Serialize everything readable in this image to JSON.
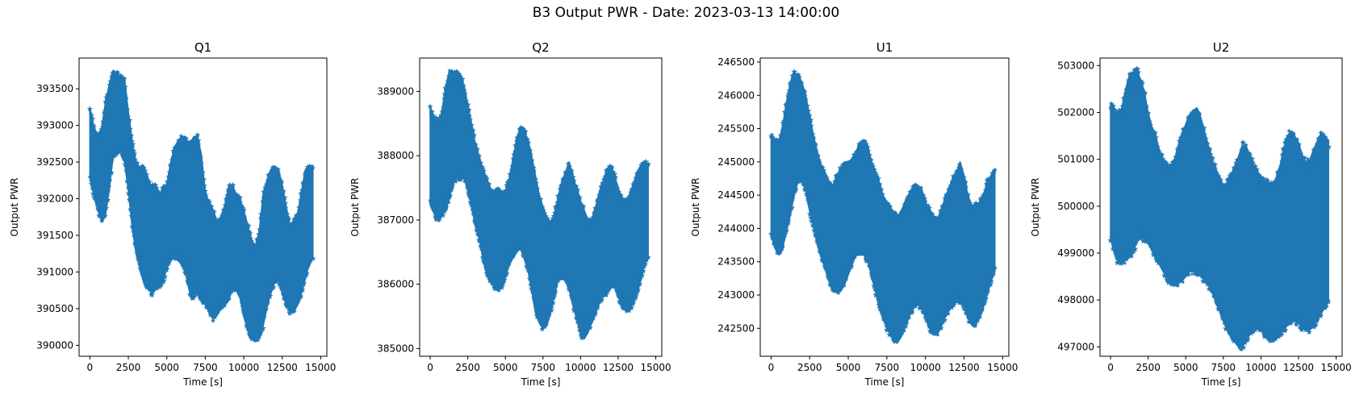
{
  "figure": {
    "title": "B3 Output PWR - Date: 2023-03-13 14:00:00",
    "accent_color": "#1f77b4"
  },
  "chart_data": [
    {
      "type": "scatter",
      "marker": "star",
      "title": "Q1",
      "xlabel": "Time [s]",
      "ylabel": "Output PWR",
      "xlim": [
        -700,
        15400
      ],
      "ylim": [
        389850,
        393920
      ],
      "xticks": [
        0,
        2500,
        5000,
        7500,
        10000,
        12500,
        15000
      ],
      "yticks": [
        390000,
        390500,
        391000,
        391500,
        392000,
        392500,
        393000,
        393500
      ],
      "grid": false,
      "color": "#1f77b4",
      "series": [
        {
          "x": [
            0,
            250,
            500,
            750,
            1000,
            1250,
            1500,
            1750,
            2000,
            2250,
            2500,
            2750,
            3000,
            3250,
            3500,
            3750,
            4000,
            4250,
            4500,
            4750,
            5000,
            5250,
            5500,
            5750,
            6000,
            6250,
            6500,
            6750,
            7000,
            7250,
            7500,
            7750,
            8000,
            8250,
            8500,
            8750,
            9000,
            9250,
            9500,
            9750,
            10000,
            10250,
            10500,
            10750,
            11000,
            11250,
            11500,
            11750,
            12000,
            12250,
            12500,
            12750,
            13000,
            13250,
            13500,
            13750,
            14000,
            14250,
            14500
          ],
          "upper": [
            393250,
            393000,
            392850,
            392950,
            393300,
            393550,
            393750,
            393720,
            393680,
            393650,
            393200,
            392800,
            392500,
            392400,
            392450,
            392300,
            392150,
            392200,
            392050,
            392150,
            392200,
            392500,
            392700,
            392800,
            392850,
            392800,
            392750,
            392850,
            392850,
            392600,
            392100,
            391950,
            391850,
            391700,
            391750,
            391900,
            392150,
            392200,
            392050,
            392000,
            391850,
            391650,
            391450,
            391350,
            391550,
            392050,
            392250,
            392400,
            392450,
            392400,
            392200,
            391900,
            391650,
            391700,
            391800,
            392100,
            392400,
            392450,
            392450
          ],
          "lower": [
            392300,
            392050,
            391850,
            391700,
            391750,
            392100,
            392550,
            392600,
            392650,
            392500,
            392100,
            391600,
            391250,
            391050,
            390850,
            390800,
            390700,
            390750,
            390800,
            390850,
            391050,
            391150,
            391200,
            391150,
            391100,
            390950,
            390700,
            390650,
            390700,
            390600,
            390550,
            390450,
            390350,
            390400,
            390500,
            390550,
            390600,
            390750,
            390750,
            390650,
            390400,
            390200,
            390100,
            390050,
            390100,
            390250,
            390500,
            390700,
            390850,
            390900,
            390700,
            390550,
            390450,
            390450,
            390550,
            390700,
            390900,
            391100,
            391200
          ]
        }
      ]
    },
    {
      "type": "scatter",
      "marker": "star",
      "title": "Q2",
      "xlabel": "Time [s]",
      "ylabel": "Output PWR",
      "xlim": [
        -700,
        15400
      ],
      "ylim": [
        384880,
        389520
      ],
      "xticks": [
        0,
        2500,
        5000,
        7500,
        10000,
        12500,
        15000
      ],
      "yticks": [
        385000,
        386000,
        387000,
        388000,
        389000
      ],
      "grid": false,
      "color": "#1f77b4",
      "series": [
        {
          "x": [
            0,
            250,
            500,
            750,
            1000,
            1250,
            1500,
            1750,
            2000,
            2250,
            2500,
            2750,
            3000,
            3250,
            3500,
            3750,
            4000,
            4250,
            4500,
            4750,
            5000,
            5250,
            5500,
            5750,
            6000,
            6250,
            6500,
            6750,
            7000,
            7250,
            7500,
            7750,
            8000,
            8250,
            8500,
            8750,
            9000,
            9250,
            9500,
            9750,
            10000,
            10250,
            10500,
            10750,
            11000,
            11250,
            11500,
            11750,
            12000,
            12250,
            12500,
            12750,
            13000,
            13250,
            13500,
            13750,
            14000,
            14250,
            14500
          ],
          "upper": [
            388750,
            388600,
            388550,
            388650,
            389050,
            389300,
            389300,
            389300,
            389250,
            389100,
            388800,
            388500,
            388200,
            388000,
            387800,
            387650,
            387500,
            387450,
            387500,
            387450,
            387450,
            387650,
            387950,
            388250,
            388450,
            388400,
            388250,
            388000,
            387700,
            387400,
            387200,
            387050,
            386950,
            387100,
            387350,
            387600,
            387750,
            387900,
            387650,
            387500,
            387300,
            387150,
            387000,
            387000,
            387200,
            387450,
            387600,
            387800,
            387850,
            387700,
            387500,
            387350,
            387300,
            387400,
            387550,
            387750,
            387850,
            387900,
            387850
          ],
          "lower": [
            387250,
            387100,
            387000,
            387050,
            387150,
            387300,
            387550,
            387650,
            387650,
            387650,
            387450,
            387200,
            386900,
            386700,
            386400,
            386150,
            386050,
            385950,
            385900,
            385950,
            386100,
            386300,
            386400,
            386500,
            386550,
            386400,
            386200,
            385900,
            385550,
            385400,
            385300,
            385350,
            385550,
            385800,
            386050,
            386100,
            386050,
            385900,
            385650,
            385450,
            385200,
            385150,
            385250,
            385400,
            385550,
            385700,
            385800,
            385850,
            385950,
            385950,
            385800,
            385650,
            385600,
            385600,
            385700,
            385850,
            386050,
            386300,
            386400
          ]
        }
      ]
    },
    {
      "type": "scatter",
      "marker": "star",
      "title": "U1",
      "xlabel": "Time [s]",
      "ylabel": "Output PWR",
      "xlim": [
        -700,
        15400
      ],
      "ylim": [
        242080,
        246560
      ],
      "xticks": [
        0,
        2500,
        5000,
        7500,
        10000,
        12500,
        15000
      ],
      "yticks": [
        242500,
        243000,
        243500,
        244000,
        244500,
        245000,
        245500,
        246000,
        246500
      ],
      "grid": false,
      "color": "#1f77b4",
      "series": [
        {
          "x": [
            0,
            250,
            500,
            750,
            1000,
            1250,
            1500,
            1750,
            2000,
            2250,
            2500,
            2750,
            3000,
            3250,
            3500,
            3750,
            4000,
            4250,
            4500,
            4750,
            5000,
            5250,
            5500,
            5750,
            6000,
            6250,
            6500,
            6750,
            7000,
            7250,
            7500,
            7750,
            8000,
            8250,
            8500,
            8750,
            9000,
            9250,
            9500,
            9750,
            10000,
            10250,
            10500,
            10750,
            11000,
            11250,
            11500,
            11750,
            12000,
            12250,
            12500,
            12750,
            13000,
            13250,
            13500,
            13750,
            14000,
            14250,
            14500
          ],
          "upper": [
            245400,
            245350,
            245300,
            245550,
            245900,
            246200,
            246350,
            246300,
            246200,
            246000,
            245700,
            245400,
            245150,
            244950,
            244850,
            244700,
            244650,
            244800,
            244900,
            245000,
            245000,
            245050,
            245150,
            245300,
            245300,
            245250,
            245000,
            244850,
            244700,
            244500,
            244400,
            244300,
            244250,
            244200,
            244300,
            244450,
            244550,
            244650,
            244650,
            244600,
            244400,
            244300,
            244200,
            244150,
            244250,
            244450,
            244600,
            244750,
            244850,
            245000,
            244800,
            244500,
            244350,
            244350,
            244400,
            244500,
            244700,
            244800,
            244900
          ],
          "lower": [
            243900,
            243700,
            243600,
            243700,
            243950,
            244200,
            244500,
            244700,
            244700,
            244550,
            244250,
            244000,
            243750,
            243550,
            243400,
            243200,
            243050,
            243050,
            243050,
            243150,
            243300,
            243450,
            243600,
            243600,
            243600,
            243500,
            243300,
            243050,
            242800,
            242650,
            242500,
            242400,
            242300,
            242300,
            242400,
            242550,
            242700,
            242800,
            242850,
            242800,
            242650,
            242500,
            242400,
            242400,
            242500,
            242650,
            242750,
            242850,
            242900,
            242900,
            242800,
            242650,
            242550,
            242550,
            242650,
            242800,
            243000,
            243200,
            243350
          ]
        }
      ]
    },
    {
      "type": "scatter",
      "marker": "star",
      "title": "U2",
      "xlabel": "Time [s]",
      "ylabel": "Output PWR",
      "xlim": [
        -700,
        15400
      ],
      "ylim": [
        496800,
        503160
      ],
      "xticks": [
        0,
        2500,
        5000,
        7500,
        10000,
        12500,
        15000
      ],
      "yticks": [
        497000,
        498000,
        499000,
        500000,
        501000,
        502000,
        503000
      ],
      "grid": false,
      "color": "#1f77b4",
      "series": [
        {
          "x": [
            0,
            250,
            500,
            750,
            1000,
            1250,
            1500,
            1750,
            2000,
            2250,
            2500,
            2750,
            3000,
            3250,
            3500,
            3750,
            4000,
            4250,
            4500,
            4750,
            5000,
            5250,
            5500,
            5750,
            6000,
            6250,
            6500,
            6750,
            7000,
            7250,
            7500,
            7750,
            8000,
            8250,
            8500,
            8750,
            9000,
            9250,
            9500,
            9750,
            10000,
            10250,
            10500,
            10750,
            11000,
            11250,
            11500,
            11750,
            12000,
            12250,
            12500,
            12750,
            13000,
            13250,
            13500,
            13750,
            14000,
            14250,
            14500
          ],
          "upper": [
            502200,
            502100,
            502000,
            502100,
            502500,
            502800,
            502850,
            502900,
            502700,
            502450,
            502000,
            501700,
            501500,
            501200,
            501000,
            500900,
            500850,
            501000,
            501300,
            501550,
            501750,
            501950,
            502050,
            502100,
            501900,
            501600,
            501300,
            501000,
            500800,
            500600,
            500450,
            500500,
            500650,
            500850,
            501050,
            501300,
            501300,
            501100,
            500900,
            500750,
            500650,
            500550,
            500500,
            500450,
            500600,
            500850,
            501200,
            501500,
            501600,
            501500,
            501350,
            501100,
            500950,
            501000,
            501200,
            501400,
            501550,
            501500,
            501400
          ],
          "lower": [
            499300,
            499000,
            498800,
            498750,
            498850,
            498900,
            499000,
            499250,
            499300,
            499300,
            499200,
            499050,
            498900,
            498750,
            498600,
            498450,
            498350,
            498300,
            498350,
            498400,
            498500,
            498600,
            498600,
            498550,
            498500,
            498400,
            498300,
            498150,
            497950,
            497750,
            497550,
            497350,
            497200,
            497100,
            497000,
            497000,
            497100,
            497250,
            497350,
            497400,
            497350,
            497250,
            497150,
            497100,
            497150,
            497250,
            497350,
            497450,
            497500,
            497550,
            497500,
            497400,
            497350,
            497350,
            497450,
            497550,
            497700,
            497850,
            497950
          ]
        }
      ]
    }
  ]
}
